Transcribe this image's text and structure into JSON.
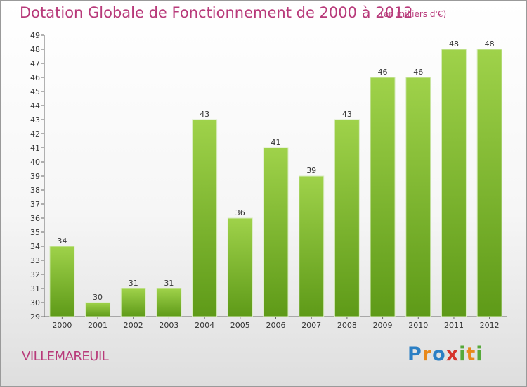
{
  "title": "Dotation Globale de Fonctionnement de 2000 à 2012",
  "unit": "(en milliers d'€)",
  "commune": "VILLEMAREUIL",
  "logo": {
    "letters": [
      "P",
      "r",
      "o",
      "x",
      "i",
      "t",
      "i"
    ],
    "colors": [
      "#2b7fc4",
      "#e8891a",
      "#2b7fc4",
      "#d6342c",
      "#56a93a",
      "#e8891a",
      "#56a93a"
    ]
  },
  "chart_data": {
    "type": "bar",
    "categories": [
      "2000",
      "2001",
      "2002",
      "2003",
      "2004",
      "2005",
      "2006",
      "2007",
      "2008",
      "2009",
      "2010",
      "2011",
      "2012"
    ],
    "values": [
      34,
      30,
      31,
      31,
      43,
      36,
      41,
      39,
      43,
      46,
      46,
      48,
      48
    ],
    "yticks": [
      "29",
      "30",
      "31",
      "32",
      "33",
      "34",
      "35",
      "36",
      "37",
      "38",
      "39",
      "40",
      "41",
      "42",
      "43",
      "44",
      "45",
      "46",
      "47",
      "48",
      "49"
    ],
    "ylim": [
      29,
      49
    ],
    "grid": false,
    "bar_color": "#7fbf3a"
  }
}
